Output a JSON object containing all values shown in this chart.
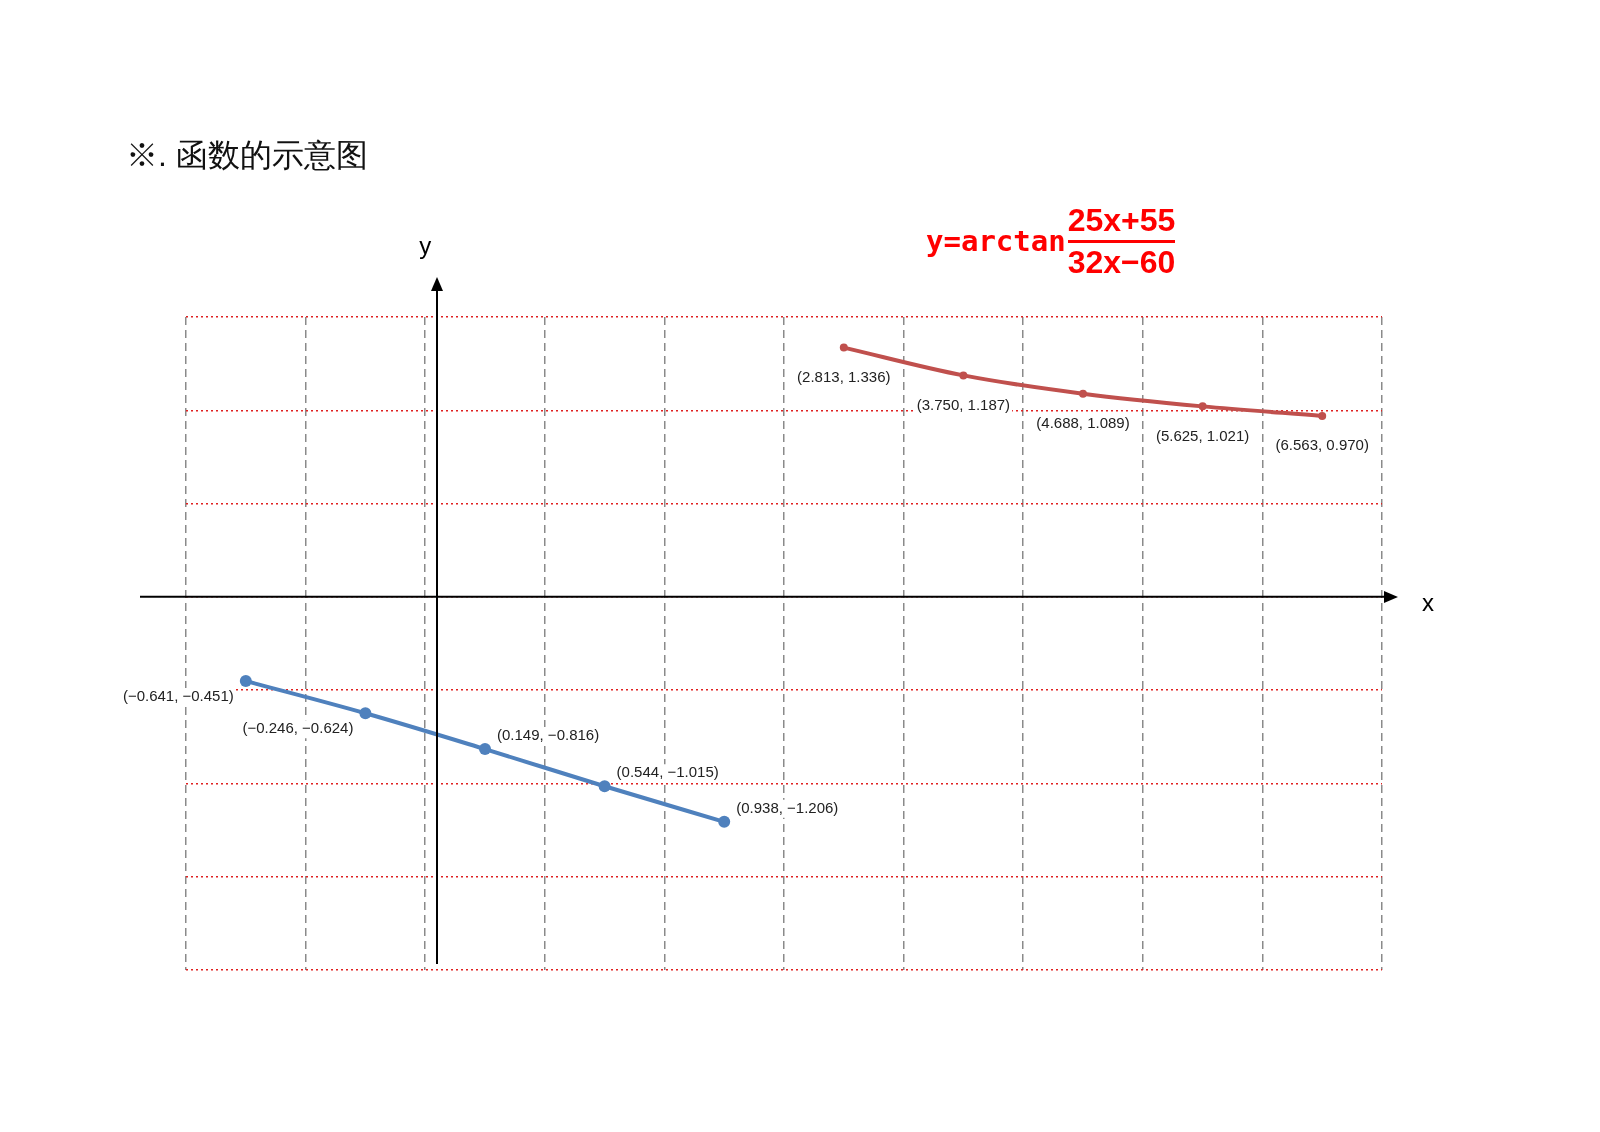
{
  "chart_data": {
    "type": "line",
    "title": "※. 函数的示意图",
    "xlabel": "x",
    "ylabel": "y",
    "annotations": [
      "y=arctan",
      "25x+55",
      "32x−60"
    ],
    "categories": [
      null,
      null,
      null,
      null,
      null,
      null,
      null,
      null,
      null,
      null
    ],
    "series": [
      {
        "color": "#4f81bd",
        "values": [
          -0.451,
          -0.624,
          -0.816,
          -1.015,
          -1.206,
          null,
          null,
          null,
          null,
          null
        ],
        "value_labels": [
          "(−0.641, −0.451)",
          "(−0.246, −0.624)",
          "(0.149, −0.816)",
          "(0.544, −1.015)",
          "(0.938, −1.206)",
          null,
          null,
          null,
          null,
          null
        ]
      },
      {
        "color": "#c0504d",
        "values": [
          null,
          null,
          null,
          null,
          null,
          1.336,
          1.187,
          1.089,
          1.021,
          0.97
        ],
        "value_labels": [
          null,
          null,
          null,
          null,
          null,
          "(2.813, 1.336)",
          "(3.750, 1.187)",
          "(4.688, 1.089)",
          "(5.625, 1.021)",
          "(6.563, 0.970)"
        ]
      }
    ],
    "ylim": [
      -2.0,
      1.5
    ],
    "yticks": [
      {
        "value": -2.0,
        "label": null
      },
      {
        "value": -1.5,
        "label": null
      },
      {
        "value": -1.0,
        "label": null
      },
      {
        "value": -0.5,
        "label": null
      },
      {
        "value": 0,
        "label": null
      },
      {
        "value": 0.5,
        "label": null
      },
      {
        "value": 1.0,
        "label": null
      },
      {
        "value": 1.5,
        "label": null
      }
    ],
    "tick_labels": false,
    "grid": true,
    "marker": "circle",
    "line_style": "solid"
  }
}
